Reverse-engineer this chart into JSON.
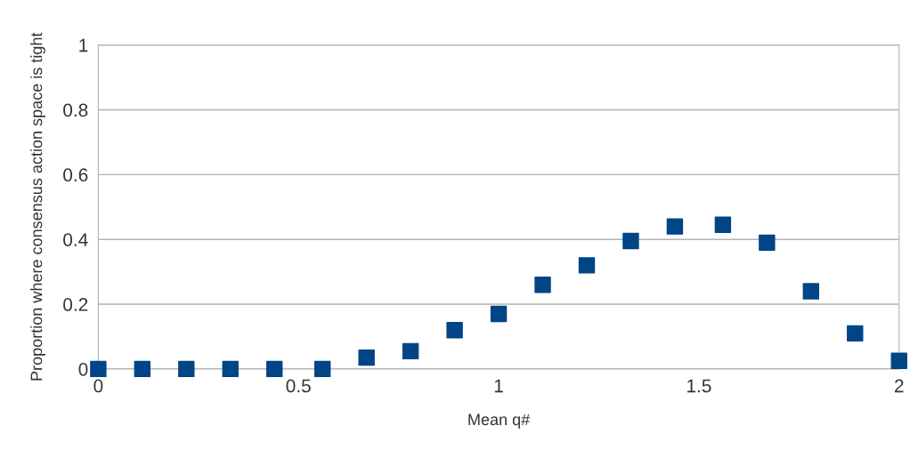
{
  "chart_data": {
    "type": "scatter",
    "xlabel": "Mean q#",
    "ylabel": "Proportion where consensus action space is tight",
    "x": [
      0,
      0.11,
      0.22,
      0.33,
      0.44,
      0.56,
      0.67,
      0.78,
      0.89,
      1,
      1.11,
      1.22,
      1.33,
      1.44,
      1.56,
      1.67,
      1.78,
      1.89,
      2
    ],
    "series": [
      {
        "color": "#004586",
        "values": [
          0,
          0,
          0,
          0,
          0,
          0,
          0.035,
          0.055,
          0.12,
          0.17,
          0.26,
          0.32,
          0.395,
          0.44,
          0.445,
          0.39,
          0.24,
          0.11,
          0.025
        ]
      }
    ],
    "xlim": [
      0,
      2
    ],
    "xticks": [
      0,
      0.5,
      1,
      1.5,
      2
    ],
    "ylim": [
      0,
      1
    ],
    "yticks": [
      0,
      0.2,
      0.4,
      0.6,
      0.8,
      1
    ],
    "grid": "y",
    "marker": "square",
    "legend": false
  }
}
